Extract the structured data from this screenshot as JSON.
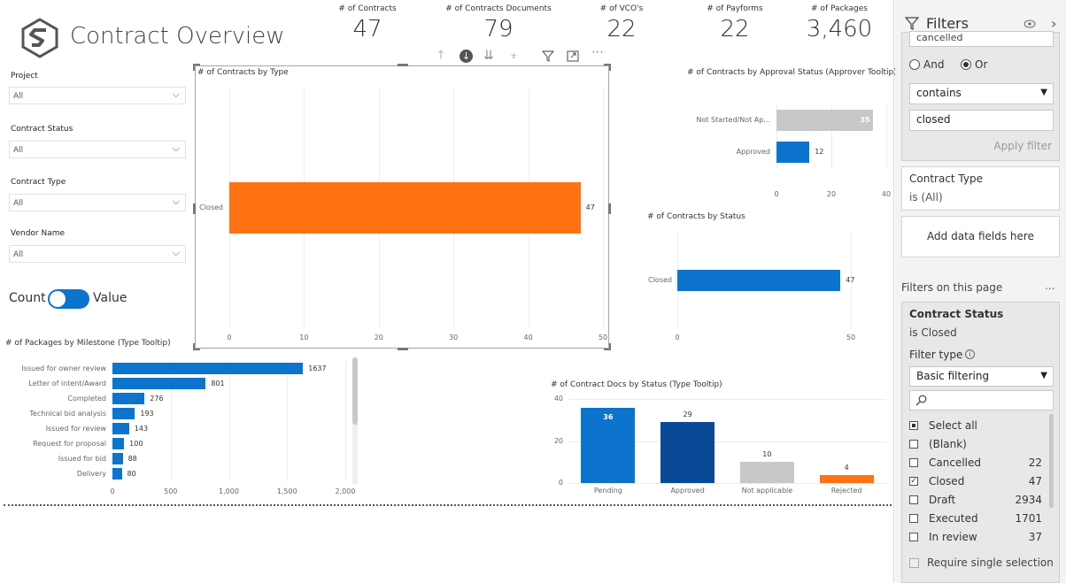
{
  "header": {
    "title": "Contract Overview"
  },
  "kpis": [
    {
      "label": "# of Contracts",
      "value": "47"
    },
    {
      "label": "# of Contracts Documents",
      "value": "79"
    },
    {
      "label": "# of VCO's",
      "value": "22"
    },
    {
      "label": "# of Payforms",
      "value": "22"
    },
    {
      "label": "# of Packages",
      "value": "3,460"
    }
  ],
  "slicers": [
    {
      "label": "Project",
      "value": "All"
    },
    {
      "label": "Contract Status",
      "value": "All"
    },
    {
      "label": "Contract Type",
      "value": "All"
    },
    {
      "label": "Vendor Name",
      "value": "All"
    }
  ],
  "toggle": {
    "left": "Count",
    "right": "Value"
  },
  "colors": {
    "orange": "#ff7213",
    "blue": "#0c74cc",
    "darkblue": "#094a97",
    "grey": "#c8c8c8"
  },
  "icons": [
    "arrow-up-icon",
    "drill-down-icon",
    "double-arrow-down-icon",
    "expand-hierarchy-icon",
    "filter-icon",
    "focus-mode-icon",
    "more-options-icon",
    "eye-icon",
    "chevron-right-icon",
    "search-icon",
    "info-icon"
  ],
  "chart_data": [
    {
      "type": "bar",
      "title": "# of Contracts by Type",
      "categories": [
        "Closed"
      ],
      "values": [
        47
      ],
      "xticks": [
        "0",
        "10",
        "20",
        "30",
        "40",
        "50"
      ],
      "xlim": [
        0,
        50
      ],
      "color": "#ff7213"
    },
    {
      "type": "bar",
      "title": "# of Contracts by Approval Status (Approver Tooltip)",
      "categories": [
        "Not Started/Not Ap...",
        "Approved"
      ],
      "values": [
        35,
        12
      ],
      "xticks": [
        "0",
        "20",
        "40"
      ],
      "xlim": [
        0,
        40
      ],
      "colors": [
        "#c8c8c8",
        "#0c74cc"
      ]
    },
    {
      "type": "bar",
      "title": "# of Contracts by Status",
      "categories": [
        "Closed"
      ],
      "values": [
        47
      ],
      "xticks": [
        "0",
        "50"
      ],
      "xlim": [
        0,
        50
      ],
      "color": "#0c74cc"
    },
    {
      "type": "bar",
      "title": "# of Packages by Milestone (Type Tooltip)",
      "categories": [
        "Issued for owner review",
        "Letter of intent/Award",
        "Completed",
        "Technical bid analysis",
        "Issued for review",
        "Request for proposal",
        "Issued for bid",
        "Delivery"
      ],
      "values": [
        1637,
        801,
        276,
        193,
        143,
        100,
        88,
        80
      ],
      "xticks": [
        "0",
        "500",
        "1,000",
        "1,500",
        "2,000"
      ],
      "xlim": [
        0,
        2000
      ],
      "color": "#0c74cc"
    },
    {
      "type": "bar",
      "title": "# of Contract Docs by Status (Type Tooltip)",
      "categories": [
        "Pending",
        "Approved",
        "Not applicable",
        "Rejected"
      ],
      "values": [
        36,
        29,
        10,
        4
      ],
      "yticks": [
        "0",
        "20",
        "40"
      ],
      "ylim": [
        0,
        40
      ],
      "colors": [
        "#0c74cc",
        "#094a97",
        "#c8c8c8",
        "#ff7213"
      ]
    }
  ],
  "filters": {
    "title": "Filters",
    "truncated_value": "cancelled",
    "and_label": "And",
    "or_label": "Or",
    "condition": "contains",
    "condition_value": "closed",
    "apply_label": "Apply filter",
    "contract_type_title": "Contract Type",
    "contract_type_value": "is (All)",
    "add_fields": "Add data fields here",
    "page_section": "Filters on this page",
    "page_more": "...",
    "status_title": "Contract Status",
    "status_value": "is Closed",
    "filter_type_label": "Filter type",
    "filter_type_value": "Basic filtering",
    "items": [
      {
        "label": "Select all",
        "count": "",
        "state": "partial"
      },
      {
        "label": "(Blank)",
        "count": "",
        "state": "off"
      },
      {
        "label": "Cancelled",
        "count": "22",
        "state": "off"
      },
      {
        "label": "Closed",
        "count": "47",
        "state": "on"
      },
      {
        "label": "Draft",
        "count": "2934",
        "state": "off"
      },
      {
        "label": "Executed",
        "count": "1701",
        "state": "off"
      },
      {
        "label": "In review",
        "count": "37",
        "state": "off"
      }
    ],
    "require_single": "Require single selection"
  }
}
